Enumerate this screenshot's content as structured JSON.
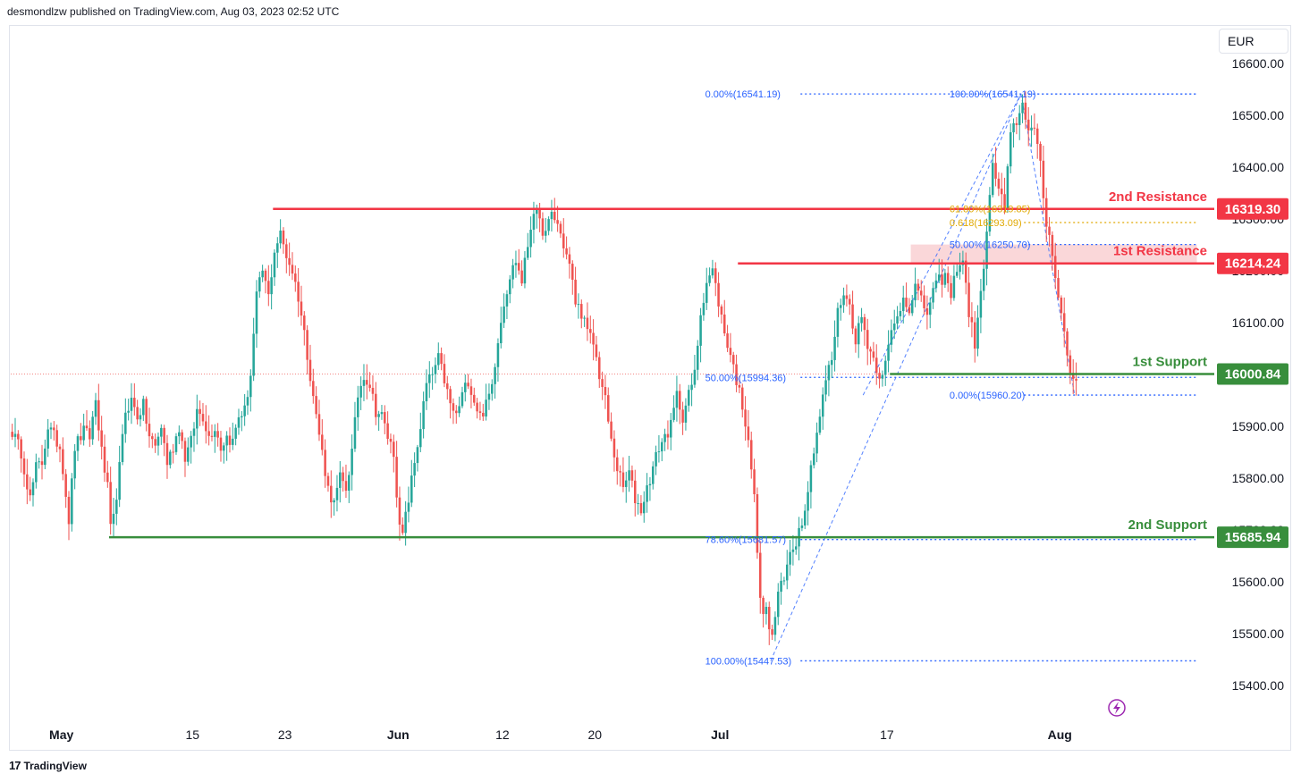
{
  "header": {
    "text": "desmondlzw published on TradingView.com, Aug 03, 2023 02:52 UTC"
  },
  "currency": "EUR",
  "footer": {
    "brand": "TradingView",
    "logo": "tv-logo-icon"
  },
  "colors": {
    "up": "#26a69a",
    "down": "#ef5350",
    "resistance": "#f23645",
    "support": "#388e3c",
    "fib": "#2962ff",
    "fib_gold": "#e0a800",
    "zone": "#f8c9cc"
  },
  "chart_data": {
    "type": "candlestick",
    "y_axis": {
      "min": 15380,
      "max": 16650,
      "ticks": [
        "16600.00",
        "16500.00",
        "16400.00",
        "16300.00",
        "16200.00",
        "16100.00",
        "16000.00",
        "15900.00",
        "15800.00",
        "15700.00",
        "15600.00",
        "15500.00",
        "15400.00"
      ]
    },
    "x_axis": {
      "ticks": [
        {
          "label": "May",
          "bold": true,
          "bar": 17
        },
        {
          "label": "15",
          "bold": false,
          "bar": 61
        },
        {
          "label": "23",
          "bold": false,
          "bar": 92
        },
        {
          "label": "Jun",
          "bold": true,
          "bar": 130
        },
        {
          "label": "12",
          "bold": false,
          "bar": 165
        },
        {
          "label": "20",
          "bold": false,
          "bar": 196
        },
        {
          "label": "Jul",
          "bold": true,
          "bar": 238
        },
        {
          "label": "17",
          "bold": false,
          "bar": 294
        },
        {
          "label": "Aug",
          "bold": true,
          "bar": 352
        }
      ]
    },
    "current_price": 16000.84,
    "levels": [
      {
        "name": "2nd Resistance",
        "price": 16319.3,
        "price_label": "16319.30",
        "type": "resistance",
        "from_bar": 88
      },
      {
        "name": "1st Resistance",
        "price": 16214.24,
        "price_label": "16214.24",
        "type": "resistance",
        "from_bar": 244
      },
      {
        "name": "1st Support",
        "price": 16000.84,
        "price_label": "16000.84",
        "type": "support",
        "from_bar": 295
      },
      {
        "name": "2nd Support",
        "price": 15685.94,
        "price_label": "15685.94",
        "type": "support",
        "from_bar": 33
      }
    ],
    "fib_labels": [
      {
        "text": "0.00%(16541.19)",
        "price": 16541.19,
        "bar_text": 233,
        "from_bar": 265,
        "to_bar": 398,
        "color": "fib"
      },
      {
        "text": "50.00%(15994.36)",
        "price": 15994.36,
        "bar_text": 233,
        "from_bar": 265,
        "to_bar": 398,
        "color": "fib"
      },
      {
        "text": "78.60%(15681.57)",
        "price": 15681.57,
        "bar_text": 233,
        "from_bar": 265,
        "to_bar": 398,
        "color": "fib"
      },
      {
        "text": "100.00%(15447.53)",
        "price": 15447.53,
        "bar_text": 233,
        "from_bar": 265,
        "to_bar": 398,
        "color": "fib"
      },
      {
        "text": "100.00%(16541.19)",
        "price": 16541.19,
        "bar_text": 315,
        "from_bar": 340,
        "to_bar": 398,
        "color": "fib"
      },
      {
        "text": "61.80%(16319.85)",
        "price": 16319.85,
        "bar_text": 315,
        "from_bar": 340,
        "to_bar": 398,
        "color": "fib_gold"
      },
      {
        "text": "0.618(16293.09)",
        "price": 16293.09,
        "bar_text": 315,
        "from_bar": 340,
        "to_bar": 398,
        "color": "fib_gold"
      },
      {
        "text": "50.00%(16250.70)",
        "price": 16250.7,
        "bar_text": 315,
        "from_bar": 340,
        "to_bar": 398,
        "color": "fib"
      },
      {
        "text": "0.00%(15960.20)",
        "price": 15960.2,
        "bar_text": 315,
        "from_bar": 340,
        "to_bar": 398,
        "color": "fib"
      }
    ],
    "resistance_zone": {
      "from_bar": 302,
      "to_bar": 398,
      "low": 16214.24,
      "high": 16250.7
    },
    "close_anchors": [
      [
        0,
        15890
      ],
      [
        3,
        15850
      ],
      [
        6,
        15760
      ],
      [
        8,
        15820
      ],
      [
        10,
        15830
      ],
      [
        12,
        15900
      ],
      [
        14,
        15880
      ],
      [
        16,
        15860
      ],
      [
        17,
        15820
      ],
      [
        19,
        15720
      ],
      [
        21,
        15860
      ],
      [
        24,
        15890
      ],
      [
        26,
        15880
      ],
      [
        28,
        15950
      ],
      [
        30,
        15850
      ],
      [
        32,
        15780
      ],
      [
        33,
        15700
      ],
      [
        34,
        15720
      ],
      [
        36,
        15820
      ],
      [
        38,
        15930
      ],
      [
        40,
        15950
      ],
      [
        42,
        15920
      ],
      [
        44,
        15940
      ],
      [
        46,
        15880
      ],
      [
        48,
        15860
      ],
      [
        50,
        15900
      ],
      [
        52,
        15830
      ],
      [
        54,
        15860
      ],
      [
        56,
        15900
      ],
      [
        58,
        15840
      ],
      [
        60,
        15870
      ],
      [
        62,
        15930
      ],
      [
        64,
        15920
      ],
      [
        66,
        15880
      ],
      [
        68,
        15900
      ],
      [
        70,
        15860
      ],
      [
        72,
        15880
      ],
      [
        74,
        15870
      ],
      [
        76,
        15920
      ],
      [
        78,
        15930
      ],
      [
        80,
        16000
      ],
      [
        82,
        16150
      ],
      [
        84,
        16200
      ],
      [
        86,
        16150
      ],
      [
        88,
        16240
      ],
      [
        90,
        16270
      ],
      [
        92,
        16230
      ],
      [
        94,
        16200
      ],
      [
        96,
        16150
      ],
      [
        98,
        16080
      ],
      [
        100,
        16000
      ],
      [
        102,
        15920
      ],
      [
        104,
        15850
      ],
      [
        106,
        15780
      ],
      [
        108,
        15750
      ],
      [
        110,
        15800
      ],
      [
        112,
        15780
      ],
      [
        114,
        15850
      ],
      [
        116,
        15960
      ],
      [
        118,
        16000
      ],
      [
        120,
        15980
      ],
      [
        122,
        15930
      ],
      [
        124,
        15920
      ],
      [
        126,
        15880
      ],
      [
        128,
        15850
      ],
      [
        130,
        15700
      ],
      [
        131,
        15690
      ],
      [
        133,
        15760
      ],
      [
        135,
        15830
      ],
      [
        137,
        15900
      ],
      [
        139,
        15980
      ],
      [
        141,
        16000
      ],
      [
        143,
        16030
      ],
      [
        145,
        15990
      ],
      [
        147,
        15940
      ],
      [
        149,
        15920
      ],
      [
        151,
        15960
      ],
      [
        153,
        15990
      ],
      [
        155,
        15950
      ],
      [
        157,
        15920
      ],
      [
        159,
        15940
      ],
      [
        161,
        15980
      ],
      [
        163,
        16070
      ],
      [
        165,
        16140
      ],
      [
        167,
        16190
      ],
      [
        169,
        16220
      ],
      [
        171,
        16180
      ],
      [
        173,
        16250
      ],
      [
        175,
        16320
      ],
      [
        177,
        16290
      ],
      [
        179,
        16270
      ],
      [
        181,
        16310
      ],
      [
        183,
        16290
      ],
      [
        185,
        16250
      ],
      [
        187,
        16210
      ],
      [
        189,
        16140
      ],
      [
        191,
        16120
      ],
      [
        193,
        16080
      ],
      [
        195,
        16060
      ],
      [
        197,
        16000
      ],
      [
        199,
        15950
      ],
      [
        201,
        15870
      ],
      [
        203,
        15820
      ],
      [
        205,
        15780
      ],
      [
        207,
        15810
      ],
      [
        209,
        15760
      ],
      [
        211,
        15740
      ],
      [
        213,
        15780
      ],
      [
        215,
        15820
      ],
      [
        217,
        15860
      ],
      [
        219,
        15880
      ],
      [
        221,
        15900
      ],
      [
        223,
        15960
      ],
      [
        225,
        15920
      ],
      [
        227,
        15960
      ],
      [
        229,
        16000
      ],
      [
        231,
        16120
      ],
      [
        233,
        16180
      ],
      [
        235,
        16200
      ],
      [
        237,
        16140
      ],
      [
        239,
        16080
      ],
      [
        241,
        16040
      ],
      [
        243,
        15990
      ],
      [
        245,
        15940
      ],
      [
        247,
        15880
      ],
      [
        249,
        15760
      ],
      [
        251,
        15560
      ],
      [
        253,
        15540
      ],
      [
        255,
        15490
      ],
      [
        257,
        15580
      ],
      [
        259,
        15600
      ],
      [
        261,
        15660
      ],
      [
        263,
        15680
      ],
      [
        265,
        15720
      ],
      [
        267,
        15780
      ],
      [
        269,
        15860
      ],
      [
        271,
        15920
      ],
      [
        273,
        15990
      ],
      [
        275,
        16030
      ],
      [
        277,
        16120
      ],
      [
        279,
        16160
      ],
      [
        281,
        16130
      ],
      [
        283,
        16070
      ],
      [
        285,
        16110
      ],
      [
        287,
        16060
      ],
      [
        289,
        16030
      ],
      [
        291,
        16000
      ],
      [
        293,
        16020
      ],
      [
        295,
        16080
      ],
      [
        297,
        16110
      ],
      [
        299,
        16150
      ],
      [
        301,
        16130
      ],
      [
        303,
        16170
      ],
      [
        305,
        16140
      ],
      [
        307,
        16120
      ],
      [
        309,
        16160
      ],
      [
        311,
        16180
      ],
      [
        313,
        16190
      ],
      [
        315,
        16150
      ],
      [
        317,
        16210
      ],
      [
        319,
        16220
      ],
      [
        321,
        16120
      ],
      [
        323,
        16060
      ],
      [
        325,
        16150
      ],
      [
        327,
        16280
      ],
      [
        329,
        16400
      ],
      [
        331,
        16360
      ],
      [
        333,
        16320
      ],
      [
        335,
        16460
      ],
      [
        337,
        16490
      ],
      [
        339,
        16520
      ],
      [
        341,
        16480
      ],
      [
        343,
        16470
      ],
      [
        345,
        16400
      ],
      [
        347,
        16290
      ],
      [
        349,
        16240
      ],
      [
        351,
        16150
      ],
      [
        353,
        16080
      ],
      [
        355,
        16000
      ],
      [
        357,
        15990
      ]
    ]
  }
}
